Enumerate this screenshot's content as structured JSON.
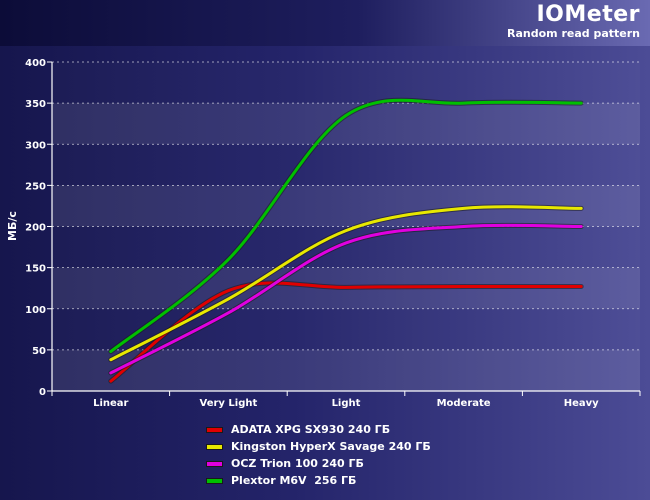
{
  "header": {
    "title": "IOMeter",
    "subtitle": "Random read pattern"
  },
  "chart_data": {
    "type": "line",
    "title": "IOMeter",
    "subtitle": "Random read pattern",
    "xlabel": "",
    "ylabel": "МБ/с",
    "categories": [
      "Linear",
      "Very Light",
      "Light",
      "Moderate",
      "Heavy"
    ],
    "ylim": [
      0,
      400
    ],
    "yticks": [
      "0",
      "50",
      "100",
      "150",
      "200",
      "250",
      "300",
      "350",
      "400"
    ],
    "grid": true,
    "legend_position": "bottom",
    "series": [
      {
        "name": "ADATA XPG SX930 240 ГБ",
        "color": "#e00000",
        "values": [
          12,
          122,
          126,
          127,
          127
        ]
      },
      {
        "name": "Kingston HyperX Savage 240 ГБ",
        "color": "#e8e800",
        "values": [
          38,
          112,
          195,
          222,
          222
        ]
      },
      {
        "name": "OCZ Trion 100 240 ГБ",
        "color": "#e000e0",
        "values": [
          22,
          95,
          180,
          200,
          200
        ]
      },
      {
        "name": "Plextor M6V  256 ГБ",
        "color": "#00c000",
        "values": [
          48,
          160,
          335,
          350,
          350
        ]
      }
    ]
  }
}
